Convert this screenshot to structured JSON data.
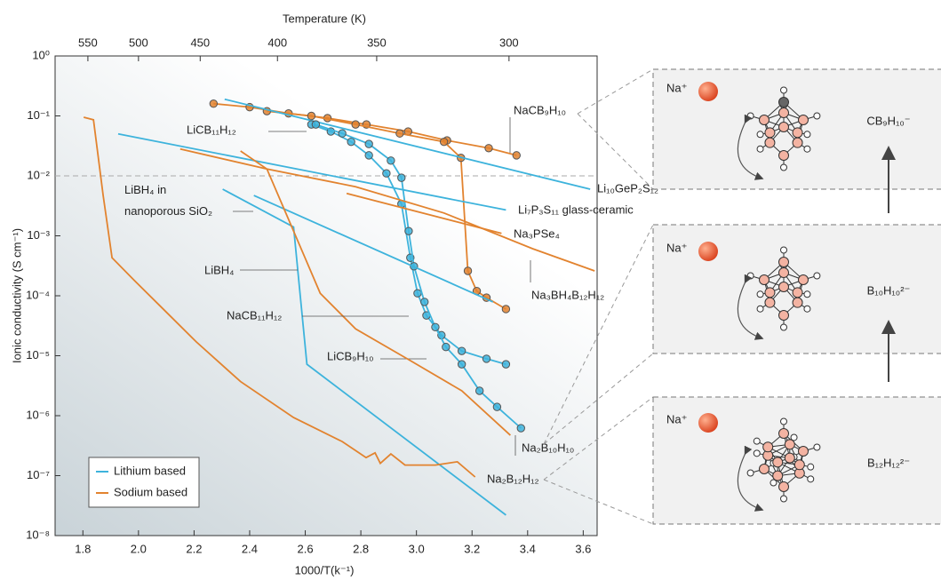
{
  "chart_data": {
    "type": "line",
    "x_label": "1000/T(k⁻¹)",
    "y_label": "Ionic conductivity (S cm⁻¹)",
    "x2_label": "Temperature (K)",
    "xlim": [
      1.7,
      3.65
    ],
    "ylim": [
      1e-08,
      1
    ],
    "log_y": true,
    "xticks": [
      1.8,
      {
        "value": 2,
        "label": "2.0"
      },
      2.2,
      2.4,
      2.6,
      2.8,
      {
        "value": 3,
        "label": "3.0"
      },
      3.2,
      3.4,
      3.6
    ],
    "x2ticks": [
      {
        "value": 1.818,
        "label": "550"
      },
      {
        "value": 2,
        "label": "500"
      },
      {
        "value": 2.222,
        "label": "450"
      },
      {
        "value": 2.5,
        "label": "400"
      },
      {
        "value": 2.857,
        "label": "350"
      },
      {
        "value": 3.333,
        "label": "300"
      }
    ],
    "yticks": [
      {
        "value": 1e-08,
        "label": "10⁻⁸"
      },
      {
        "value": 1e-07,
        "label": "10⁻⁷"
      },
      {
        "value": 1e-06,
        "label": "10⁻⁶"
      },
      {
        "value": 1e-05,
        "label": "10⁻⁵"
      },
      {
        "value": 0.0001,
        "label": "10⁻⁴"
      },
      {
        "value": 0.001,
        "label": "10⁻³"
      },
      {
        "value": 0.01,
        "label": "10⁻²"
      },
      {
        "value": 0.1,
        "label": "10⁻¹"
      },
      {
        "value": 1,
        "label": "10⁰"
      }
    ],
    "reference_line": 0.01,
    "legend": {
      "position": "lower left",
      "entries": [
        {
          "name": "Lithium based",
          "color": "#3db3dc"
        },
        {
          "name": "Sodium based",
          "color": "#e2832f"
        }
      ]
    },
    "series": [
      {
        "name": "NaCB₉H₁₀",
        "color": "#e2832f",
        "markers": true,
        "x": [
          2.27,
          2.4,
          2.54,
          2.68,
          2.82,
          2.97,
          3.11,
          3.26,
          3.36
        ],
        "values": [
          0.16,
          0.14,
          0.11,
          0.092,
          0.072,
          0.055,
          0.039,
          0.029,
          0.022
        ]
      },
      {
        "name": "Na₂B₁₀H₁₀",
        "color": "#e2832f",
        "markers": true,
        "x": [
          2.462,
          2.622,
          2.781,
          2.94,
          3.099,
          3.16,
          3.185,
          3.217,
          3.252,
          3.322
        ],
        "values": [
          0.12,
          0.1,
          0.072,
          0.051,
          0.037,
          0.02,
          0.00026,
          0.00012,
          9.3e-05,
          6e-05
        ]
      },
      {
        "name": "Li₁₀GeP₂S₁₂",
        "color": "#3db3dc",
        "markers": false,
        "x": [
          2.31,
          3.625
        ],
        "values": [
          0.19,
          0.006
        ]
      },
      {
        "name": "LiCB₁₁H₁₂",
        "color": "#3db3dc",
        "markers": true,
        "x": [
          2.622,
          2.692,
          2.765,
          2.829,
          2.892,
          2.946,
          2.978,
          3.004,
          3.036,
          3.09,
          3.163,
          3.252,
          3.322
        ],
        "values": [
          0.072,
          0.055,
          0.037,
          0.022,
          0.011,
          0.0034,
          0.00043,
          0.00011,
          4.7e-05,
          2.2e-05,
          1.2e-05,
          8.9e-06,
          7.2e-06
        ]
      },
      {
        "name": "LiCB₉H₁₀",
        "color": "#3db3dc",
        "markers": true,
        "x": [
          2.638,
          2.733,
          2.829,
          2.908,
          2.946,
          2.972,
          2.991,
          3.029,
          3.068,
          3.106,
          3.163,
          3.227,
          3.29,
          3.376
        ],
        "values": [
          0.072,
          0.051,
          0.034,
          0.018,
          0.0093,
          0.0012,
          0.00031,
          7.9e-05,
          3e-05,
          1.4e-05,
          7.2e-06,
          2.6e-06,
          1.4e-06,
          6.2e-07
        ]
      },
      {
        "name": "Li₇P₃S₁₁ glass-ceramic",
        "color": "#3db3dc",
        "markers": false,
        "x": [
          1.927,
          3.322
        ],
        "values": [
          0.05,
          0.0027
        ]
      },
      {
        "name": "Na₃PSe₄",
        "color": "#e2832f",
        "markers": false,
        "x": [
          2.749,
          3.306
        ],
        "values": [
          0.0051,
          0.0011
        ]
      },
      {
        "name": "Na₃BH₄B₁₂H₁₂",
        "color": "#e2832f",
        "markers": false,
        "x": [
          2.15,
          2.462,
          2.781,
          3.099,
          3.418,
          3.641
        ],
        "values": [
          0.028,
          0.013,
          0.0066,
          0.0024,
          0.00061,
          0.00026
        ]
      },
      {
        "name": "LiBH₄ in\nnanoporous SiO₂",
        "color": "#3db3dc",
        "markers": false,
        "x": [
          2.415,
          3.275
        ],
        "values": [
          0.0047,
          7.9e-05
        ]
      },
      {
        "name": "LiBH₄",
        "color": "#3db3dc",
        "markers": false,
        "x": [
          2.303,
          2.558,
          2.606,
          3.322
        ],
        "values": [
          0.006,
          0.0014,
          7.2e-06,
          2.2e-08
        ]
      },
      {
        "name": "NaCB₁₁H₁₂",
        "color": "#e2832f",
        "markers": false,
        "x": [
          2.367,
          2.462,
          2.558,
          2.654,
          2.781,
          2.972,
          3.163,
          3.338
        ],
        "values": [
          0.026,
          0.013,
          0.0012,
          0.00011,
          2.8e-05,
          8.6e-06,
          2.6e-06,
          4.7e-07
        ]
      },
      {
        "name": "Na₂B₁₂H₁₂",
        "color": "#e2832f",
        "markers": false,
        "x": [
          1.803,
          1.838,
          1.873,
          1.905,
          1.985,
          2.08,
          2.208,
          2.367,
          2.558,
          2.733,
          2.819,
          2.851,
          2.87,
          2.908,
          2.959,
          3.068,
          3.147,
          3.211
        ],
        "values": [
          0.095,
          0.086,
          0.0047,
          0.00043,
          0.00018,
          6.6e-05,
          1.7e-05,
          3.7e-06,
          9.3e-07,
          3.7e-07,
          2e-07,
          2.4e-07,
          1.6e-07,
          2.3e-07,
          1.5e-07,
          1.5e-07,
          1.7e-07,
          9.5e-08
        ]
      }
    ]
  },
  "diagram": {
    "panels": [
      {
        "ion": "Na⁺",
        "anion": "CB₉H₁₀⁻"
      },
      {
        "ion": "Na⁺",
        "anion": "B₁₀H₁₀²⁻"
      },
      {
        "ion": "Na⁺",
        "anion": "B₁₂H₁₂²⁻"
      }
    ]
  }
}
